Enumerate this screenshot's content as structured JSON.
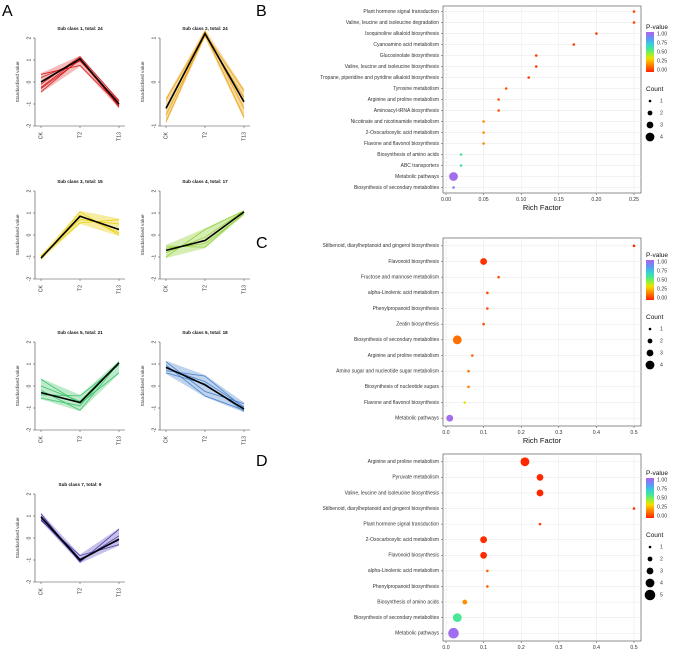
{
  "panel_labels": [
    "A",
    "B",
    "C",
    "D"
  ],
  "colors": {
    "grid": "#e6e6e6",
    "axis": "#444444",
    "mean_line": "#000000",
    "pvalue_gradient": [
      "#ff2200",
      "#ff5a00",
      "#ff9a00",
      "#f1e000",
      "#8ff03a",
      "#45e59a",
      "#3aced6",
      "#5a9cf4",
      "#8a78f0",
      "#b266ee"
    ]
  },
  "chart_data": [
    {
      "id": "sub1",
      "type": "line",
      "panel": "A",
      "title": "Sub class 1, total: 24",
      "categories": [
        "CK",
        "T2",
        "T13"
      ],
      "ylabel": "Standardised value",
      "ylim": [
        -2,
        2
      ],
      "yticks": [
        -2,
        -1,
        0,
        1,
        2
      ],
      "color": "#d01010",
      "band": "#f3b0b0",
      "mean": [
        0.0,
        1.05,
        -1.0
      ],
      "series": [
        [
          -0.45,
          1.05,
          -1.05
        ],
        [
          -0.3,
          1.0,
          -1.1
        ],
        [
          -0.1,
          1.15,
          -0.85
        ],
        [
          0.35,
          0.75,
          -1.05
        ],
        [
          0.2,
          0.95,
          -0.9
        ],
        [
          -0.25,
          1.1,
          -1.15
        ]
      ]
    },
    {
      "id": "sub2",
      "type": "line",
      "panel": "A",
      "title": "Sub class 2, total: 24",
      "categories": [
        "CK",
        "T2",
        "T13"
      ],
      "ylabel": "Standardised value",
      "ylim": [
        -1,
        1
      ],
      "yticks": [
        -1,
        0,
        1
      ],
      "color": "#e8a000",
      "band": "#f6d493",
      "mean": [
        -0.6,
        1.1,
        -0.45
      ],
      "series": [
        [
          -0.9,
          1.1,
          -0.8
        ],
        [
          -0.4,
          1.1,
          -0.2
        ],
        [
          -0.6,
          1.15,
          -0.6
        ],
        [
          -0.75,
          1.05,
          -0.35
        ]
      ]
    },
    {
      "id": "sub3",
      "type": "line",
      "panel": "A",
      "title": "Sub class 3, total: 15",
      "categories": [
        "CK",
        "T2",
        "T13"
      ],
      "ylabel": "Standardised value",
      "ylim": [
        -2,
        2
      ],
      "yticks": [
        -2,
        -1,
        0,
        1,
        2
      ],
      "color": "#e8cc00",
      "band": "#f6ea90",
      "mean": [
        -1.05,
        0.85,
        0.25
      ],
      "series": [
        [
          -1.1,
          1.05,
          0.0
        ],
        [
          -1.0,
          0.55,
          0.7
        ],
        [
          -1.05,
          0.9,
          0.1
        ],
        [
          -0.95,
          0.7,
          0.5
        ]
      ]
    },
    {
      "id": "sub4",
      "type": "line",
      "panel": "A",
      "title": "Sub class 4, total: 17",
      "categories": [
        "CK",
        "T2",
        "T13"
      ],
      "ylabel": "Standardised value",
      "ylim": [
        -2,
        2
      ],
      "yticks": [
        -2,
        -1,
        0,
        1,
        2
      ],
      "color": "#8ccc30",
      "band": "#cfeaa6",
      "mean": [
        -0.7,
        -0.25,
        1.05
      ],
      "series": [
        [
          -1.0,
          0.25,
          1.1
        ],
        [
          -0.5,
          -0.55,
          1.0
        ],
        [
          -0.8,
          -0.1,
          1.1
        ],
        [
          -0.6,
          -0.4,
          0.95
        ]
      ]
    },
    {
      "id": "sub5",
      "type": "line",
      "panel": "A",
      "title": "Sub class 5, total: 21",
      "categories": [
        "CK",
        "T2",
        "T13"
      ],
      "ylabel": "Standardised value",
      "ylim": [
        -2,
        2
      ],
      "yticks": [
        -2,
        -1,
        0,
        1,
        2
      ],
      "color": "#30c060",
      "band": "#b2e6c2",
      "mean": [
        -0.3,
        -0.75,
        1.05
      ],
      "series": [
        [
          0.3,
          -0.8,
          0.6
        ],
        [
          -0.55,
          -0.9,
          1.1
        ],
        [
          -0.2,
          -1.1,
          1.05
        ],
        [
          -0.4,
          -0.45,
          0.95
        ],
        [
          0.0,
          -0.7,
          1.1
        ]
      ]
    },
    {
      "id": "sub6",
      "type": "line",
      "panel": "A",
      "title": "Sub class 6, total: 18",
      "categories": [
        "CK",
        "T2",
        "T13"
      ],
      "ylabel": "Standardised value",
      "ylim": [
        -2,
        2
      ],
      "yticks": [
        -2,
        -1,
        0,
        1,
        2
      ],
      "color": "#3a78c8",
      "band": "#b4cbea",
      "mean": [
        0.85,
        0.05,
        -1.05
      ],
      "series": [
        [
          1.1,
          -0.25,
          -0.8
        ],
        [
          0.7,
          0.45,
          -1.0
        ],
        [
          0.95,
          -0.45,
          -1.1
        ],
        [
          0.8,
          0.2,
          -0.95
        ],
        [
          0.6,
          0.1,
          -1.15
        ]
      ]
    },
    {
      "id": "sub7",
      "type": "line",
      "panel": "A",
      "title": "Sub class 7, total: 9",
      "categories": [
        "CK",
        "T2",
        "T13"
      ],
      "ylabel": "Standardised value",
      "ylim": [
        -2,
        2
      ],
      "yticks": [
        -2,
        -1,
        0,
        1,
        2
      ],
      "color": "#3a30a0",
      "band": "#bdb6e6",
      "mean": [
        0.95,
        -1.0,
        -0.05
      ],
      "series": [
        [
          1.1,
          -1.1,
          0.4
        ],
        [
          0.8,
          -0.8,
          -0.3
        ],
        [
          1.0,
          -0.95,
          -0.1
        ],
        [
          0.85,
          -1.05,
          0.1
        ]
      ]
    },
    {
      "id": "B",
      "type": "scatter",
      "panel": "B",
      "xlabel": "Rich Factor",
      "xlim": [
        0,
        0.25
      ],
      "xticks": [
        "0.00",
        "0.05",
        "0.10",
        "0.15",
        "0.20",
        "0.25"
      ],
      "legend_pvalue": {
        "title": "P-value",
        "ticks": [
          "1.00",
          "0.75",
          "0.50",
          "0.25",
          "0.00"
        ]
      },
      "legend_count": {
        "title": "Count",
        "values": [
          1,
          2,
          3,
          4
        ]
      },
      "points": [
        {
          "label": "Plant hormone signal transduction",
          "x": 0.25,
          "count": 1,
          "p": 0.05
        },
        {
          "label": "Valine, leucine and isoleucine degradation",
          "x": 0.25,
          "count": 1,
          "p": 0.05
        },
        {
          "label": "Isoquinoline alkaloid biosynthesis",
          "x": 0.2,
          "count": 1,
          "p": 0.05
        },
        {
          "label": "Cyanoamino acid metabolism",
          "x": 0.17,
          "count": 1,
          "p": 0.05
        },
        {
          "label": "Glucosinolate biosynthesis",
          "x": 0.12,
          "count": 1,
          "p": 0.05
        },
        {
          "label": "Valine, leucine and isoleucine biosynthesis",
          "x": 0.12,
          "count": 1,
          "p": 0.05
        },
        {
          "label": "Tropane, piperidine and pyridine alkaloid biosynthesis",
          "x": 0.11,
          "count": 1,
          "p": 0.05
        },
        {
          "label": "Tyrosine metabolism",
          "x": 0.08,
          "count": 1,
          "p": 0.1
        },
        {
          "label": "Arginine and proline metabolism",
          "x": 0.07,
          "count": 1,
          "p": 0.1
        },
        {
          "label": "Aminoacyl-tRNA biosynthesis",
          "x": 0.07,
          "count": 1,
          "p": 0.1
        },
        {
          "label": "Nicotinate and nicotinamide metabolism",
          "x": 0.05,
          "count": 1,
          "p": 0.2
        },
        {
          "label": "2-Oxocarboxylic acid metabolism",
          "x": 0.05,
          "count": 1,
          "p": 0.2
        },
        {
          "label": "Flavone and flavonol biosynthesis",
          "x": 0.05,
          "count": 1,
          "p": 0.2
        },
        {
          "label": "Biosynthesis of amino acids",
          "x": 0.02,
          "count": 1,
          "p": 0.55
        },
        {
          "label": "ABC transporters",
          "x": 0.02,
          "count": 1,
          "p": 0.6
        },
        {
          "label": "Metabolic pathways",
          "x": 0.01,
          "count": 4,
          "p": 0.95
        },
        {
          "label": "Biosynthesis of secondary metabolites",
          "x": 0.01,
          "count": 1,
          "p": 0.85
        }
      ]
    },
    {
      "id": "C",
      "type": "scatter",
      "panel": "C",
      "xlabel": "Rich Factor",
      "xlim": [
        0,
        0.5
      ],
      "xticks": [
        "0.0",
        "0.1",
        "0.2",
        "0.3",
        "0.4",
        "0.5"
      ],
      "legend_pvalue": {
        "title": "P-value",
        "ticks": [
          "1.00",
          "0.75",
          "0.50",
          "0.25",
          "0.00"
        ]
      },
      "legend_count": {
        "title": "Count",
        "values": [
          1,
          2,
          3,
          4
        ]
      },
      "points": [
        {
          "label": "Stilbenoid, diarylheptanoid and gingerol biosynthesis",
          "x": 0.5,
          "count": 1,
          "p": 0.02
        },
        {
          "label": "Flavonoid biosynthesis",
          "x": 0.1,
          "count": 3,
          "p": 0.03
        },
        {
          "label": "Fructose and mannose metabolism",
          "x": 0.14,
          "count": 1,
          "p": 0.08
        },
        {
          "label": "alpha-Linolenic acid metabolism",
          "x": 0.11,
          "count": 1,
          "p": 0.08
        },
        {
          "label": "Phenylpropanoid biosynthesis",
          "x": 0.11,
          "count": 1,
          "p": 0.08
        },
        {
          "label": "Zeatin biosynthesis",
          "x": 0.1,
          "count": 1,
          "p": 0.08
        },
        {
          "label": "Biosynthesis of secondary metabolites",
          "x": 0.03,
          "count": 4,
          "p": 0.15
        },
        {
          "label": "Arginine and proline metabolism",
          "x": 0.07,
          "count": 1,
          "p": 0.12
        },
        {
          "label": "Amino sugar and nucleotide sugar metabolism",
          "x": 0.06,
          "count": 1,
          "p": 0.15
        },
        {
          "label": "Biosynthesis of nucleotide sugars",
          "x": 0.06,
          "count": 1,
          "p": 0.18
        },
        {
          "label": "Flavone and flavonol biosynthesis",
          "x": 0.05,
          "count": 1,
          "p": 0.35
        },
        {
          "label": "Metabolic pathways",
          "x": 0.01,
          "count": 3,
          "p": 0.95
        }
      ]
    },
    {
      "id": "D",
      "type": "scatter",
      "panel": "D",
      "xlabel": "Rich Factor",
      "xlim": [
        0,
        0.5
      ],
      "xticks": [
        "0.0",
        "0.1",
        "0.2",
        "0.3",
        "0.4",
        "0.5"
      ],
      "legend_pvalue": {
        "title": "P-value",
        "ticks": [
          "1.00",
          "0.75",
          "0.50",
          "0.25",
          "0.00"
        ]
      },
      "legend_count": {
        "title": "Count",
        "values": [
          1,
          2,
          3,
          4,
          5
        ]
      },
      "points": [
        {
          "label": "Arginine and proline metabolism",
          "x": 0.21,
          "count": 4,
          "p": 0.01
        },
        {
          "label": "Pyruvate metabolism",
          "x": 0.25,
          "count": 3,
          "p": 0.01
        },
        {
          "label": "Valine, leucine and isoleucine biosynthesis",
          "x": 0.25,
          "count": 3,
          "p": 0.01
        },
        {
          "label": "Stilbenoid, diarylheptanoid and gingerol biosynthesis",
          "x": 0.5,
          "count": 1,
          "p": 0.03
        },
        {
          "label": "Plant hormone signal transduction",
          "x": 0.25,
          "count": 1,
          "p": 0.06
        },
        {
          "label": "2-Oxocarboxylic acid metabolism",
          "x": 0.1,
          "count": 3,
          "p": 0.02
        },
        {
          "label": "Flavonoid biosynthesis",
          "x": 0.1,
          "count": 3,
          "p": 0.02
        },
        {
          "label": "alpha-Linolenic acid metabolism",
          "x": 0.11,
          "count": 1,
          "p": 0.12
        },
        {
          "label": "Phenylpropanoid biosynthesis",
          "x": 0.11,
          "count": 1,
          "p": 0.12
        },
        {
          "label": "Biosynthesis of amino acids",
          "x": 0.05,
          "count": 2,
          "p": 0.2
        },
        {
          "label": "Biosynthesis of secondary metabolites",
          "x": 0.03,
          "count": 4,
          "p": 0.55
        },
        {
          "label": "Metabolic pathways",
          "x": 0.02,
          "count": 5,
          "p": 0.95
        }
      ]
    }
  ]
}
